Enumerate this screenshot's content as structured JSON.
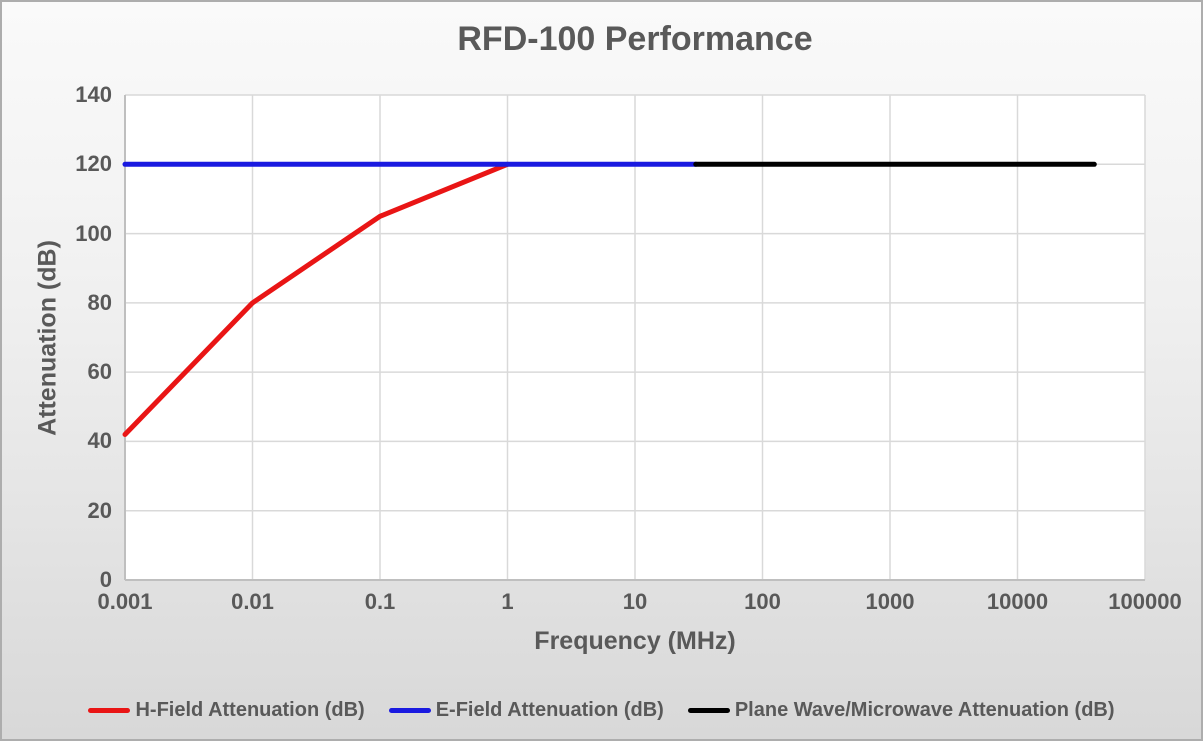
{
  "chart_data": {
    "type": "line",
    "title": "RFD-100 Performance",
    "xlabel": "Frequency (MHz)",
    "ylabel": "Attenuation (dB)",
    "x_scale": "log",
    "xlim": [
      0.001,
      100000
    ],
    "ylim": [
      0,
      140
    ],
    "x_ticks": [
      0.001,
      0.01,
      0.1,
      1,
      10,
      100,
      1000,
      10000,
      100000
    ],
    "x_tick_labels": [
      "0.001",
      "0.01",
      "0.1",
      "1",
      "10",
      "100",
      "1000",
      "10000",
      "100000"
    ],
    "y_ticks": [
      0,
      20,
      40,
      60,
      80,
      100,
      120,
      140
    ],
    "y_tick_labels": [
      "0",
      "20",
      "40",
      "60",
      "80",
      "100",
      "120",
      "140"
    ],
    "grid": true,
    "legend_position": "bottom",
    "series": [
      {
        "id": "h-field",
        "name": "H-Field Attenuation (dB)",
        "color": "#e91515",
        "points": [
          [
            0.001,
            42
          ],
          [
            0.01,
            80
          ],
          [
            0.1,
            105
          ],
          [
            1,
            120
          ]
        ]
      },
      {
        "id": "e-field",
        "name": "E-Field Attenuation (dB)",
        "color": "#1a1ae0",
        "points": [
          [
            0.001,
            120
          ],
          [
            30,
            120
          ]
        ]
      },
      {
        "id": "plane-wave",
        "name": "Plane Wave/Microwave Attenuation (dB)",
        "color": "#000000",
        "points": [
          [
            30,
            120
          ],
          [
            40000,
            120
          ]
        ]
      }
    ],
    "colors": {
      "text": "#595959",
      "gridline": "#d9d9d9",
      "axis_line": "#bfbfbf",
      "plot_background": "#ffffff"
    }
  }
}
